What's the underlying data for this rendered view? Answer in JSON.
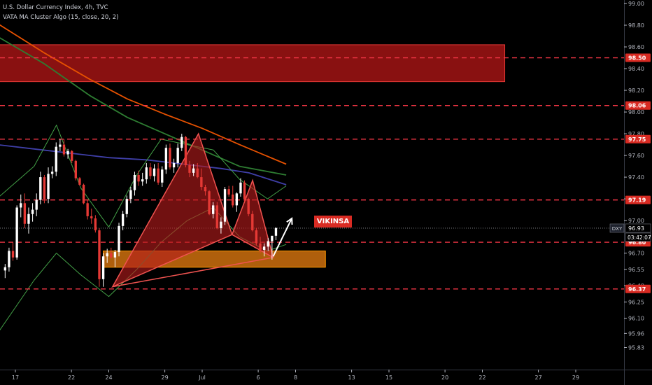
{
  "header": {
    "symbol_line": "U.S. Dollar Currency Index, 4h, TVC",
    "indicator_line": "VATA MA Cluster Algo (15, close, 20, 2)"
  },
  "annotation_label": "VIKINSA",
  "price_tag": {
    "symbol": "DXY",
    "price": "96.93",
    "countdown": "03:42:07"
  },
  "colors": {
    "background": "#000000",
    "grid_text": "#b2b5be",
    "level_line": "#f23645",
    "level_tag": "#d92b23",
    "pattern_fill": "#b71c1c",
    "pattern_line": "#ef5350",
    "zone_orange": "#e07a10",
    "zone_red": "#a11414",
    "ma_orange": "#e65100",
    "ma_green": "#2e7d32",
    "ma_navy": "#3f3fa8",
    "band_green": "#43a047",
    "candle_up": "#ffffff",
    "candle_down": "#e53935"
  },
  "chart_data": {
    "type": "candlestick",
    "y_range": [
      95.73,
      99.0
    ],
    "y_ticks": [
      "99.00",
      "98.80",
      "98.60",
      "98.40",
      "98.20",
      "98.00",
      "97.80",
      "97.60",
      "97.40",
      "97.20",
      "97.00",
      "96.70",
      "96.55",
      "96.40",
      "96.25",
      "96.10",
      "95.96",
      "95.83"
    ],
    "x_ticks": [
      {
        "label": "17",
        "slot": 0
      },
      {
        "label": "22",
        "slot": 3
      },
      {
        "label": "24",
        "slot": 5
      },
      {
        "label": "29",
        "slot": 8
      },
      {
        "label": "Jul",
        "slot": 10
      },
      {
        "label": "6",
        "slot": 13
      },
      {
        "label": "8",
        "slot": 15
      },
      {
        "label": "13",
        "slot": 18
      },
      {
        "label": "15",
        "slot": 20
      },
      {
        "label": "20",
        "slot": 23
      },
      {
        "label": "22",
        "slot": 25
      },
      {
        "label": "27",
        "slot": 28
      },
      {
        "label": "29",
        "slot": 30
      }
    ],
    "horizontal_levels": [
      {
        "price": 98.5,
        "label": "98.50"
      },
      {
        "price": 98.06,
        "label": "98.06"
      },
      {
        "price": 97.75,
        "label": "97.75"
      },
      {
        "price": 97.19,
        "label": "97.19"
      },
      {
        "price": 96.8,
        "label": "96.80"
      },
      {
        "price": 96.37,
        "label": "96.37"
      }
    ],
    "zones": [
      {
        "name": "supply",
        "price_top": 98.62,
        "price_bottom": 98.28,
        "start_slot": -1,
        "end_slot": 26.2
      },
      {
        "name": "demand",
        "price_top": 96.72,
        "price_bottom": 96.57,
        "start_slot": 4.7,
        "end_slot": 16.6
      }
    ],
    "pattern_points": [
      {
        "slot": 5.2,
        "price": 96.39
      },
      {
        "slot": 9.8,
        "price": 97.8
      },
      {
        "slot": 11.6,
        "price": 96.87
      },
      {
        "slot": 12.7,
        "price": 97.37
      },
      {
        "slot": 13.8,
        "price": 96.66
      }
    ],
    "projection_arrow": {
      "from": {
        "slot": 13.8,
        "price": 96.67
      },
      "to": {
        "slot": 14.8,
        "price": 97.02
      }
    },
    "last_price": 96.93,
    "candles": [
      [
        96.54,
        96.6,
        96.47,
        96.57
      ],
      [
        96.57,
        96.75,
        96.53,
        96.72
      ],
      [
        96.72,
        96.8,
        96.63,
        96.66
      ],
      [
        96.66,
        97.14,
        96.64,
        97.12
      ],
      [
        97.12,
        97.24,
        97.03,
        97.16
      ],
      [
        97.16,
        97.25,
        96.93,
        96.97
      ],
      [
        96.97,
        97.12,
        96.88,
        97.06
      ],
      [
        97.06,
        97.16,
        96.99,
        97.1
      ],
      [
        97.1,
        97.25,
        97.04,
        97.19
      ],
      [
        97.19,
        97.45,
        97.15,
        97.4
      ],
      [
        97.4,
        97.42,
        97.16,
        97.2
      ],
      [
        97.2,
        97.49,
        97.16,
        97.43
      ],
      [
        97.43,
        97.5,
        97.39,
        97.45
      ],
      [
        97.45,
        97.72,
        97.41,
        97.68
      ],
      [
        97.68,
        97.75,
        97.64,
        97.7
      ],
      [
        97.7,
        97.75,
        97.59,
        97.61
      ],
      [
        97.61,
        97.66,
        97.57,
        97.64
      ],
      [
        97.64,
        97.65,
        97.53,
        97.55
      ],
      [
        97.55,
        97.56,
        97.37,
        97.39
      ],
      [
        97.39,
        97.4,
        97.32,
        97.33
      ],
      [
        97.33,
        97.34,
        97.15,
        97.16
      ],
      [
        97.16,
        97.19,
        97.01,
        97.04
      ],
      [
        97.04,
        97.11,
        96.97,
        97.02
      ],
      [
        97.02,
        97.05,
        96.89,
        96.91
      ],
      [
        96.91,
        96.93,
        96.39,
        96.46
      ],
      [
        96.46,
        96.7,
        96.39,
        96.67
      ],
      [
        96.67,
        96.74,
        96.61,
        96.7
      ],
      [
        96.7,
        96.75,
        96.65,
        96.66
      ],
      [
        96.66,
        96.73,
        96.57,
        96.71
      ],
      [
        96.71,
        96.98,
        96.67,
        96.95
      ],
      [
        96.95,
        97.09,
        96.91,
        97.06
      ],
      [
        97.06,
        97.23,
        97.03,
        97.2
      ],
      [
        97.2,
        97.31,
        97.16,
        97.28
      ],
      [
        97.28,
        97.45,
        97.23,
        97.42
      ],
      [
        97.42,
        97.46,
        97.32,
        97.36
      ],
      [
        97.36,
        97.44,
        97.32,
        97.38
      ],
      [
        97.38,
        97.53,
        97.34,
        97.49
      ],
      [
        97.49,
        97.53,
        97.38,
        97.41
      ],
      [
        97.41,
        97.52,
        97.36,
        97.48
      ],
      [
        97.48,
        97.53,
        97.33,
        97.35
      ],
      [
        97.35,
        97.5,
        97.31,
        97.47
      ],
      [
        97.47,
        97.7,
        97.43,
        97.67
      ],
      [
        97.67,
        97.71,
        97.47,
        97.49
      ],
      [
        97.49,
        97.57,
        97.44,
        97.53
      ],
      [
        97.53,
        97.71,
        97.49,
        97.67
      ],
      [
        97.67,
        97.8,
        97.64,
        97.77
      ],
      [
        97.77,
        97.78,
        97.49,
        97.51
      ],
      [
        97.51,
        97.55,
        97.4,
        97.44
      ],
      [
        97.44,
        97.52,
        97.41,
        97.48
      ],
      [
        97.48,
        97.53,
        97.39,
        97.4
      ],
      [
        97.4,
        97.48,
        97.28,
        97.31
      ],
      [
        97.31,
        97.33,
        97.23,
        97.27
      ],
      [
        97.27,
        97.28,
        97.05,
        97.06
      ],
      [
        97.06,
        97.17,
        97.02,
        97.14
      ],
      [
        97.14,
        97.17,
        96.92,
        96.93
      ],
      [
        96.93,
        97.03,
        96.88,
        96.99
      ],
      [
        96.99,
        97.31,
        96.96,
        97.29
      ],
      [
        97.29,
        97.32,
        97.22,
        97.24
      ],
      [
        97.24,
        97.32,
        97.12,
        97.14
      ],
      [
        97.14,
        97.26,
        97.08,
        97.25
      ],
      [
        97.25,
        97.39,
        97.22,
        97.35
      ],
      [
        97.35,
        97.37,
        97.17,
        97.2
      ],
      [
        97.2,
        97.21,
        97.04,
        97.06
      ],
      [
        97.06,
        97.09,
        96.9,
        96.91
      ],
      [
        96.91,
        96.93,
        96.77,
        96.79
      ],
      [
        96.79,
        96.85,
        96.7,
        96.73
      ],
      [
        96.73,
        96.79,
        96.67,
        96.76
      ],
      [
        96.76,
        96.84,
        96.72,
        96.81
      ],
      [
        96.81,
        96.85,
        96.64,
        96.86
      ],
      [
        96.86,
        96.94,
        96.82,
        96.93
      ]
    ],
    "ma_series": [
      {
        "key": "orange",
        "points": [
          [
            -1,
            98.82
          ],
          [
            1.5,
            98.55
          ],
          [
            4,
            98.3
          ],
          [
            6,
            98.12
          ],
          [
            8,
            97.98
          ],
          [
            10,
            97.85
          ],
          [
            12,
            97.7
          ],
          [
            14.5,
            97.52
          ]
        ]
      },
      {
        "key": "green",
        "points": [
          [
            -1,
            98.7
          ],
          [
            1.5,
            98.45
          ],
          [
            4,
            98.15
          ],
          [
            6,
            97.95
          ],
          [
            8,
            97.8
          ],
          [
            10,
            97.65
          ],
          [
            12,
            97.5
          ],
          [
            14.5,
            97.42
          ]
        ]
      },
      {
        "key": "navy",
        "points": [
          [
            -1,
            97.7
          ],
          [
            1,
            97.66
          ],
          [
            3,
            97.62
          ],
          [
            5,
            97.58
          ],
          [
            7,
            97.56
          ],
          [
            9,
            97.52
          ],
          [
            11,
            97.48
          ],
          [
            12.5,
            97.44
          ],
          [
            14.5,
            97.33
          ]
        ]
      },
      {
        "key": "band_green",
        "points": [
          [
            -1,
            97.2
          ],
          [
            1,
            97.5
          ],
          [
            2.2,
            97.88
          ],
          [
            3.5,
            97.3
          ],
          [
            5,
            96.94
          ],
          [
            6.5,
            97.42
          ],
          [
            7.8,
            97.75
          ],
          [
            9.2,
            97.7
          ],
          [
            10.6,
            97.65
          ],
          [
            12,
            97.38
          ],
          [
            13.5,
            97.2
          ],
          [
            14.5,
            97.32
          ]
        ]
      },
      {
        "key": "band_green",
        "points": [
          [
            -1,
            95.95
          ],
          [
            1,
            96.45
          ],
          [
            2.2,
            96.7
          ],
          [
            3.5,
            96.5
          ],
          [
            5,
            96.3
          ],
          [
            6.5,
            96.55
          ],
          [
            7.8,
            96.8
          ],
          [
            9.2,
            97.0
          ],
          [
            10.6,
            97.12
          ],
          [
            12,
            96.85
          ],
          [
            13.5,
            96.72
          ],
          [
            14.5,
            96.78
          ]
        ]
      }
    ]
  }
}
